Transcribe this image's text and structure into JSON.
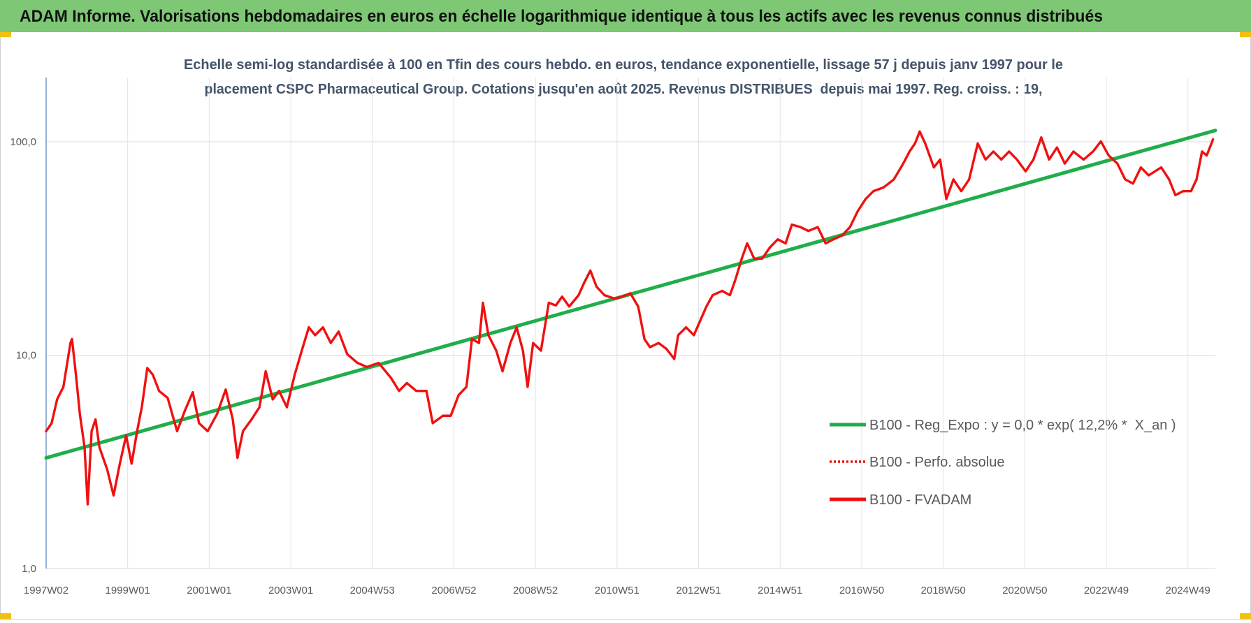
{
  "chart_data": {
    "type": "line",
    "title": "ADAM Informe. Valorisations hebdomadaires en euros en échelle logarithmique identique à tous les actifs avec les revenus connus distribués",
    "subtitle": [
      "Echelle semi-log standardisée à 100 en Tfin des cours hebdo. en euros, tendance exponentielle, lissage 57 j depuis janv 1997 pour le",
      "placement CSPC Pharmaceutical Group. Cotations jusqu'en août 2025. Revenus DISTRIBUES  depuis mai 1997. Reg. croiss. : 19,"
    ],
    "log_y": true,
    "grid": true,
    "legend": "right",
    "xlim": [
      0,
      1491
    ],
    "xticks": [
      {
        "value": 0,
        "label": "1997W02"
      },
      {
        "value": 104,
        "label": "1999W01"
      },
      {
        "value": 208,
        "label": "2001W01"
      },
      {
        "value": 312,
        "label": "2003W01"
      },
      {
        "value": 416,
        "label": "2004W53"
      },
      {
        "value": 520,
        "label": "2006W52"
      },
      {
        "value": 624,
        "label": "2008W52"
      },
      {
        "value": 728,
        "label": "2010W51"
      },
      {
        "value": 832,
        "label": "2012W51"
      },
      {
        "value": 936,
        "label": "2014W51"
      },
      {
        "value": 1040,
        "label": "2016W50"
      },
      {
        "value": 1144,
        "label": "2018W50"
      },
      {
        "value": 1248,
        "label": "2020W50"
      },
      {
        "value": 1352,
        "label": "2022W49"
      },
      {
        "value": 1456,
        "label": "2024W49"
      }
    ],
    "ylim": [
      1,
      200
    ],
    "yticks": [
      {
        "value": 1,
        "label": "1,0"
      },
      {
        "value": 10,
        "label": "10,0"
      },
      {
        "value": 100,
        "label": "100,0"
      }
    ],
    "series": [
      {
        "name": "B100 - Reg_Expo : y = 0,0 * exp( 12,2% *  X_an )",
        "color": "#1fae4a",
        "style": "solid",
        "x": [
          0,
          1491
        ],
        "values": [
          3.3,
          113
        ]
      },
      {
        "name": "B100 - Perfo. absolue",
        "color": "#e81010",
        "style": "dotted"
      },
      {
        "name": "B100 - FVADAM",
        "color": "#f01010",
        "style": "solid",
        "x": [
          0,
          7,
          14,
          22,
          31,
          33,
          38,
          43,
          49,
          53,
          58,
          63,
          68,
          78,
          86,
          94,
          102,
          109,
          116,
          122,
          129,
          136,
          144,
          155,
          167,
          177,
          187,
          195,
          206,
          218,
          229,
          238,
          244,
          251,
          262,
          272,
          280,
          289,
          297,
          307,
          317,
          326,
          335,
          343,
          353,
          363,
          373,
          384,
          397,
          409,
          424,
          440,
          450,
          460,
          472,
          485,
          493,
          506,
          516,
          526,
          536,
          543,
          552,
          557,
          564,
          574,
          582,
          592,
          600,
          608,
          614,
          621,
          631,
          641,
          650,
          658,
          667,
          679,
          686,
          694,
          702,
          712,
          725,
          735,
          745,
          755,
          763,
          770,
          781,
          791,
          801,
          806,
          816,
          826,
          833,
          842,
          850,
          862,
          872,
          879,
          887,
          894,
          903,
          913,
          923,
          933,
          943,
          951,
          962,
          972,
          984,
          994,
          1004,
          1015,
          1025,
          1035,
          1045,
          1055,
          1068,
          1081,
          1093,
          1101,
          1108,
          1114,
          1121,
          1132,
          1140,
          1148,
          1157,
          1167,
          1177,
          1188,
          1198,
          1208,
          1218,
          1228,
          1238,
          1249,
          1259,
          1269,
          1279,
          1289,
          1299,
          1310,
          1323,
          1335,
          1345,
          1355,
          1366,
          1376,
          1386,
          1396,
          1406,
          1422,
          1432,
          1440,
          1450,
          1460,
          1467,
          1474,
          1480,
          1488
        ],
        "values": [
          4.4,
          4.8,
          6.2,
          7.1,
          11.4,
          11.9,
          8.1,
          5.3,
          3.7,
          2.0,
          4.4,
          5.0,
          3.7,
          2.9,
          2.2,
          3.1,
          4.2,
          3.1,
          4.4,
          5.7,
          8.7,
          8.1,
          6.8,
          6.3,
          4.4,
          5.5,
          6.7,
          4.8,
          4.4,
          5.3,
          6.9,
          5.0,
          3.3,
          4.4,
          5.0,
          5.7,
          8.4,
          6.2,
          6.8,
          5.7,
          8.1,
          10.5,
          13.5,
          12.4,
          13.5,
          11.4,
          12.9,
          10.1,
          9.2,
          8.8,
          9.2,
          7.8,
          6.8,
          7.4,
          6.8,
          6.8,
          4.8,
          5.2,
          5.2,
          6.5,
          7.1,
          11.9,
          11.4,
          17.6,
          12.4,
          10.5,
          8.4,
          11.4,
          13.5,
          10.5,
          7.1,
          11.4,
          10.5,
          17.6,
          17.1,
          18.8,
          16.9,
          19.1,
          21.8,
          24.9,
          20.9,
          19.1,
          18.4,
          18.8,
          19.5,
          16.9,
          11.9,
          10.9,
          11.4,
          10.7,
          9.6,
          12.4,
          13.5,
          12.4,
          14.2,
          16.9,
          19.1,
          20.0,
          19.1,
          22.6,
          28.3,
          33.4,
          28.3,
          28.3,
          32.0,
          34.9,
          33.4,
          40.9,
          39.8,
          38.2,
          39.8,
          33.4,
          34.9,
          36.4,
          39.8,
          47.3,
          53.9,
          58.7,
          61.1,
          66.6,
          79.1,
          90.0,
          98.2,
          111.7,
          98.2,
          75.8,
          82.5,
          53.9,
          66.6,
          58.7,
          66.6,
          98.2,
          82.5,
          90.0,
          82.5,
          90.0,
          82.5,
          72.7,
          82.5,
          104.8,
          82.5,
          94.0,
          79.1,
          90.0,
          82.5,
          90.0,
          100.4,
          86.2,
          79.1,
          66.6,
          63.7,
          75.8,
          69.6,
          75.8,
          66.6,
          56.2,
          58.7,
          58.7,
          66.6,
          90.0,
          86.2,
          102.6
        ]
      }
    ]
  }
}
